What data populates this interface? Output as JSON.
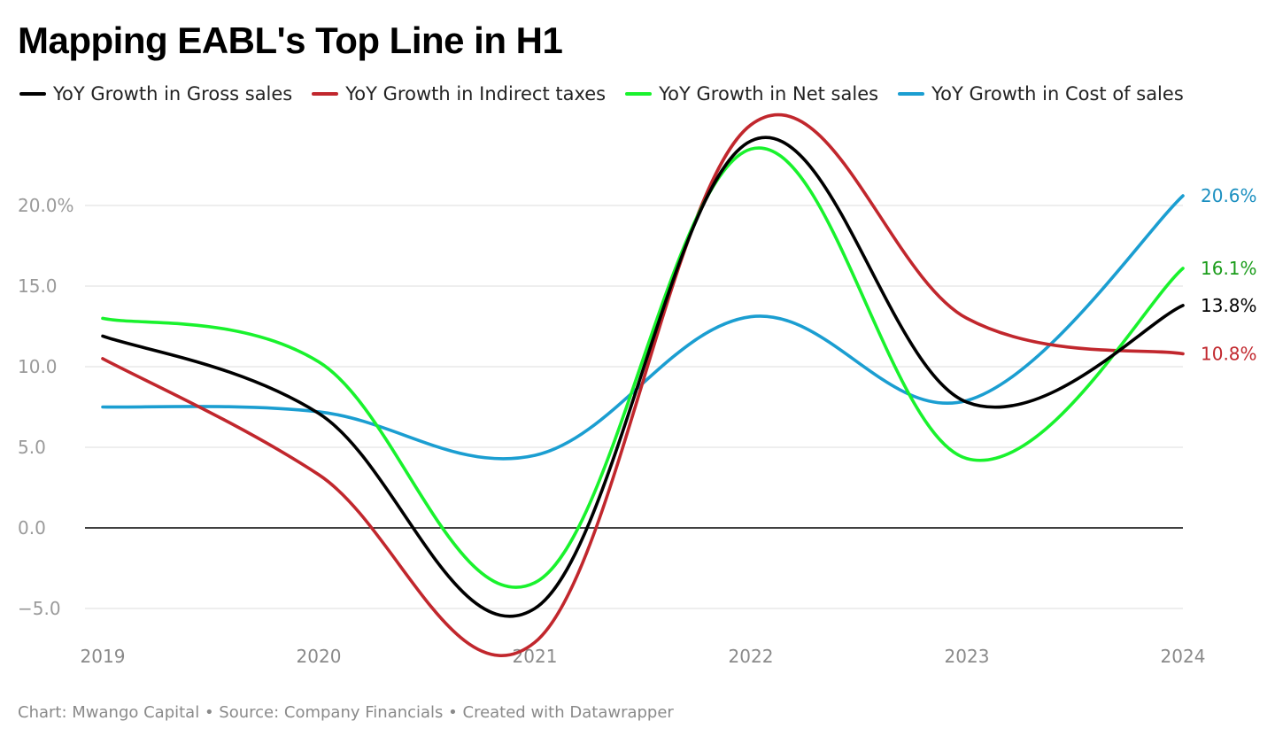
{
  "chart_data": {
    "type": "line",
    "title": "Mapping EABL's Top Line in H1",
    "x": [
      "2019",
      "2020",
      "2021",
      "2022",
      "2023",
      "2024"
    ],
    "y_ticks": [
      -5,
      0,
      5,
      10,
      15,
      20
    ],
    "y_tick_labels": [
      "−5.0",
      "0.0",
      "5.0",
      "10.0",
      "15.0",
      "20.0%"
    ],
    "ylim": [
      -7.5,
      24.5
    ],
    "grid": true,
    "legend_position": "top",
    "series": [
      {
        "name": "YoY Growth in Gross sales",
        "color": "#000000",
        "label_color": "#000000",
        "values": [
          11.9,
          7.1,
          -5.0,
          24.0,
          7.8,
          13.8
        ],
        "end_label": "13.8%"
      },
      {
        "name": "YoY Growth in Indirect taxes",
        "color": "#c1272d",
        "label_color": "#c1272d",
        "values": [
          10.5,
          3.3,
          -7.1,
          25.0,
          13.0,
          10.8
        ],
        "end_label": "10.8%"
      },
      {
        "name": "YoY Growth in Net sales",
        "color": "#19f22d",
        "label_color": "#1a9c1a",
        "values": [
          13.0,
          10.3,
          -3.4,
          23.5,
          4.3,
          16.1
        ],
        "end_label": "16.1%"
      },
      {
        "name": "YoY Growth in Cost of sales",
        "color": "#1b9ed1",
        "label_color": "#1b8fc0",
        "values": [
          7.5,
          7.2,
          4.5,
          13.1,
          7.9,
          20.6
        ],
        "end_label": "20.6%"
      }
    ]
  },
  "footer": "Chart: Mwango Capital • Source: Company Financials • Created with Datawrapper"
}
